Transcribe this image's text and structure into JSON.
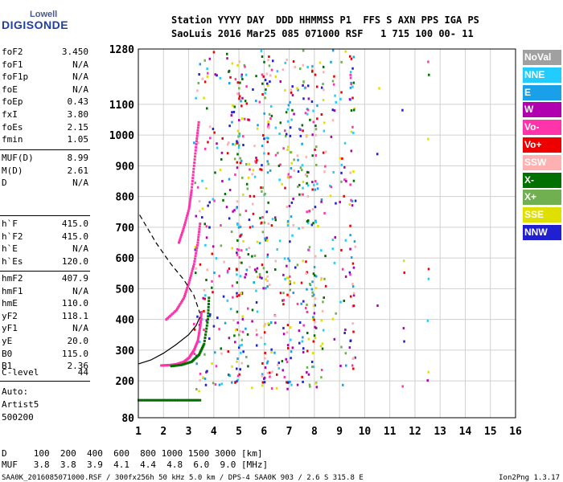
{
  "logo": {
    "top": "Lowell",
    "bottom": "DIGISONDE"
  },
  "header": {
    "line1": "Station YYYY DAY  DDD HHMMSS P1  FFS S AXN PPS IGA PS",
    "line2": "SaoLuis 2016 Mar25 085 071000 RSF   1 715 100 00- 11"
  },
  "params_group1": [
    {
      "k": "foF2",
      "v": "3.450"
    },
    {
      "k": "foF1",
      "v": "N/A"
    },
    {
      "k": "foF1p",
      "v": "N/A"
    },
    {
      "k": "foE",
      "v": "N/A"
    },
    {
      "k": "foEp",
      "v": "0.43"
    },
    {
      "k": "fxI",
      "v": "3.80"
    },
    {
      "k": "foEs",
      "v": "2.15"
    },
    {
      "k": "fmin",
      "v": "1.05"
    }
  ],
  "params_group2": [
    {
      "k": "MUF(D)",
      "v": "8.99"
    },
    {
      "k": "M(D)",
      "v": "2.61"
    },
    {
      "k": "D",
      "v": "N/A"
    }
  ],
  "params_group3": [
    {
      "k": "h`F",
      "v": "415.0"
    },
    {
      "k": "h`F2",
      "v": "415.0"
    },
    {
      "k": "h`E",
      "v": "N/A"
    },
    {
      "k": "h`Es",
      "v": "120.0"
    }
  ],
  "params_group4": [
    {
      "k": "hmF2",
      "v": "407.9"
    },
    {
      "k": "hmF1",
      "v": "N/A"
    },
    {
      "k": "hmE",
      "v": "110.0"
    },
    {
      "k": "yF2",
      "v": "118.1"
    },
    {
      "k": "yF1",
      "v": "N/A"
    },
    {
      "k": "yE",
      "v": "20.0"
    },
    {
      "k": "B0",
      "v": "115.0"
    },
    {
      "k": "B1",
      "v": "2.36"
    }
  ],
  "params_group5": [
    {
      "k": "C-level",
      "v": "44"
    }
  ],
  "auto": {
    "line1": "Auto:",
    "line2": "Artist5",
    "line3": "500200"
  },
  "legend": [
    {
      "label": "NoVal",
      "color": "#a0a0a0"
    },
    {
      "label": "NNE",
      "color": "#22ccff"
    },
    {
      "label": "E",
      "color": "#1aa0e8"
    },
    {
      "label": "W",
      "color": "#b000b0"
    },
    {
      "label": "Vo-",
      "color": "#ff33aa"
    },
    {
      "label": "Vo+",
      "color": "#ee0000"
    },
    {
      "label": "SSW",
      "color": "#ffb0b0"
    },
    {
      "label": "X-",
      "color": "#007000"
    },
    {
      "label": "X+",
      "color": "#70b050"
    },
    {
      "label": "SSE",
      "color": "#e0e000"
    },
    {
      "label": "NNW",
      "color": "#2020d0"
    }
  ],
  "bottom": {
    "d_line": "D     100  200  400  600  800 1000 1500 3000 [km]",
    "muf_line": "MUF   3.8  3.8  3.9  4.1  4.4  4.8  6.0  9.0 [MHz]",
    "footer": "SAA0K_2016085071000.RSF / 300fx256h 50 kHz 5.0 km / DPS-4 SAA0K 903 / 2.6 S 315.8 E",
    "version": "Ion2Png 1.3.17"
  },
  "chart_data": {
    "type": "scatter",
    "title": "Station SaoLuis 2016 Mar25 085 071000",
    "xlabel": "",
    "ylabel": "",
    "xlim": [
      1,
      16
    ],
    "ylim": [
      80,
      1280
    ],
    "x_ticks": [
      1,
      2,
      3,
      4,
      5,
      6,
      7,
      8,
      9,
      10,
      11,
      12,
      13,
      14,
      15,
      16
    ],
    "y_ticks": [
      80,
      200,
      300,
      400,
      500,
      600,
      700,
      800,
      900,
      1000,
      1100,
      1280
    ],
    "grid": true,
    "traces": [
      {
        "name": "ordinary F2 trace (Vo-)",
        "color": "#ff33aa",
        "points": [
          [
            1.9,
            250
          ],
          [
            2.2,
            251
          ],
          [
            2.5,
            254
          ],
          [
            2.8,
            262
          ],
          [
            3.0,
            275
          ],
          [
            3.2,
            300
          ],
          [
            3.35,
            330
          ],
          [
            3.45,
            380
          ],
          [
            3.5,
            430
          ]
        ]
      },
      {
        "name": "X- trace",
        "color": "#007000",
        "points": [
          [
            2.3,
            248
          ],
          [
            2.7,
            252
          ],
          [
            3.1,
            262
          ],
          [
            3.4,
            285
          ],
          [
            3.6,
            320
          ],
          [
            3.75,
            400
          ],
          [
            3.8,
            480
          ]
        ]
      },
      {
        "name": "Es trace",
        "color": "#007000",
        "points": [
          [
            1.0,
            137
          ],
          [
            1.5,
            137
          ],
          [
            2.0,
            137
          ],
          [
            2.5,
            137
          ],
          [
            3.0,
            137
          ],
          [
            3.5,
            137
          ]
        ]
      },
      {
        "name": "second hop (Vo-)",
        "color": "#ff33aa",
        "points": [
          [
            2.1,
            400
          ],
          [
            2.5,
            430
          ],
          [
            2.8,
            470
          ],
          [
            3.0,
            520
          ],
          [
            3.2,
            580
          ],
          [
            3.35,
            650
          ],
          [
            3.45,
            720
          ]
        ]
      },
      {
        "name": "third hop (Vo-)",
        "color": "#ff33aa",
        "points": [
          [
            2.6,
            650
          ],
          [
            2.8,
            700
          ],
          [
            3.0,
            760
          ],
          [
            3.1,
            820
          ],
          [
            3.2,
            900
          ],
          [
            3.3,
            980
          ],
          [
            3.4,
            1050
          ]
        ]
      }
    ],
    "profile_solid": [
      [
        1.0,
        255
      ],
      [
        1.5,
        268
      ],
      [
        2.0,
        290
      ],
      [
        2.5,
        318
      ],
      [
        3.0,
        350
      ],
      [
        3.3,
        380
      ],
      [
        3.45,
        408
      ]
    ],
    "profile_dashed": [
      [
        1.05,
        740
      ],
      [
        1.7,
        650
      ],
      [
        2.3,
        580
      ],
      [
        2.8,
        530
      ],
      [
        3.2,
        480
      ],
      [
        3.45,
        420
      ]
    ]
  }
}
